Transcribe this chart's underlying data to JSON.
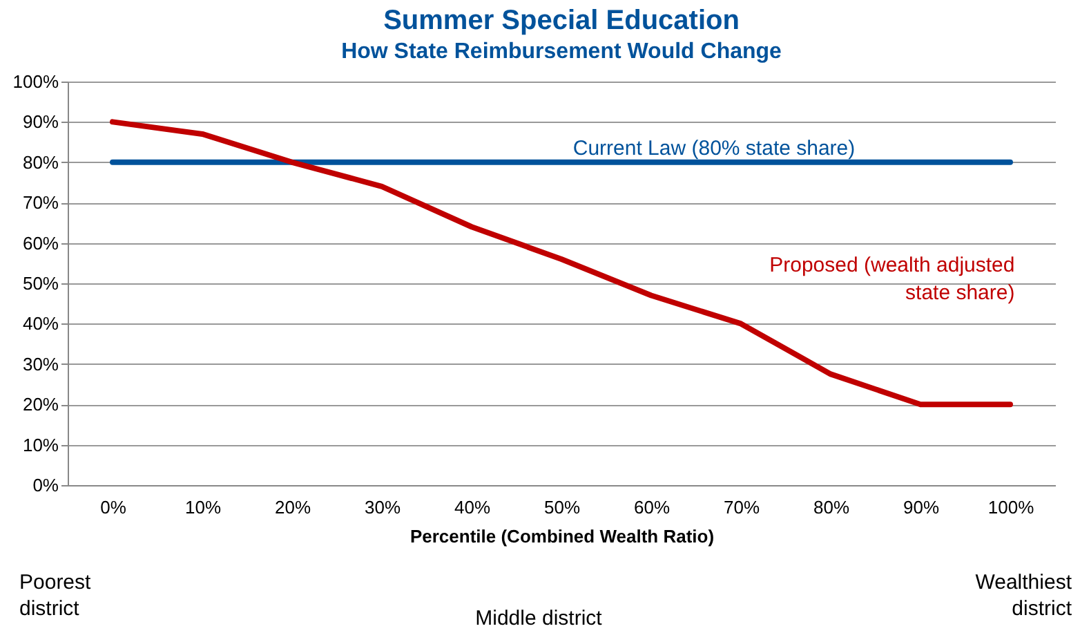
{
  "chart_data": {
    "type": "line",
    "title": "Summer Special Education",
    "subtitle": "How State Reimbursement Would Change",
    "xlabel": "Percentile (Combined Wealth Ratio)",
    "categories": [
      "0%",
      "10%",
      "20%",
      "30%",
      "40%",
      "50%",
      "60%",
      "70%",
      "80%",
      "90%",
      "100%"
    ],
    "series": [
      {
        "name": "Current Law (80% state share)",
        "color": "#00529b",
        "values": [
          80,
          80,
          80,
          80,
          80,
          80,
          80,
          80,
          80,
          80,
          80
        ]
      },
      {
        "name": "Proposed (wealth adjusted state share)",
        "color": "#c00000",
        "values": [
          90,
          87,
          80,
          74,
          64,
          56,
          47,
          40,
          27.5,
          20,
          20
        ]
      }
    ],
    "ylim": [
      0,
      100
    ],
    "yticks": [
      {
        "value": 0,
        "label": "0%"
      },
      {
        "value": 10,
        "label": "10%"
      },
      {
        "value": 20,
        "label": "20%"
      },
      {
        "value": 30,
        "label": "30%"
      },
      {
        "value": 40,
        "label": "40%"
      },
      {
        "value": 50,
        "label": "50%"
      },
      {
        "value": 60,
        "label": "60%"
      },
      {
        "value": 70,
        "label": "70%"
      },
      {
        "value": 80,
        "label": "80%"
      },
      {
        "value": 90,
        "label": "90%"
      },
      {
        "value": 100,
        "label": "100%"
      }
    ],
    "annotations": [
      "Poorest district",
      "Middle district",
      "Wealthiest district"
    ],
    "grid": "y",
    "marker": "none",
    "line_style": "solid"
  }
}
